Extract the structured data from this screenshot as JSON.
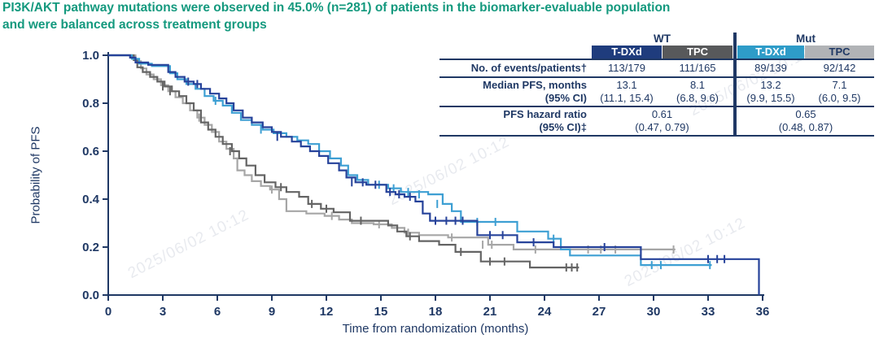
{
  "title": {
    "line1": "PI3K/AKT pathway mutations were observed in 45.0% (n=281) of patients in the biomarker-evaluable population",
    "line2": "and were balanced across treatment groups"
  },
  "watermark": {
    "text": "2025/06/02 10:12"
  },
  "colors": {
    "title_text": "#14997E",
    "axis_text": "#1F3864",
    "divider": "#1F3864",
    "wt_tdxd_curve": "#26429A",
    "wt_tpc_curve": "#646464",
    "mut_tdxd_curve": "#3D9FD3",
    "mut_tpc_curve": "#A6A6A6",
    "header_wt_tdxd_bg": "#1F3C7D",
    "header_wt_tpc_bg": "#58595B",
    "header_mut_tdxd_bg": "#2E9CC8",
    "header_mut_tpc_bg": "#B1B3B6"
  },
  "table": {
    "group_headers": [
      "WT",
      "Mut"
    ],
    "col_headers": [
      "T-DXd",
      "TPC",
      "T-DXd",
      "TPC"
    ],
    "rows": {
      "events": {
        "label": "No. of events/patients†",
        "wt_tdxd": "113/179",
        "wt_tpc": "111/165",
        "mut_tdxd": "89/139",
        "mut_tpc": "92/142"
      },
      "median": {
        "label_line1": "Median PFS, months",
        "label_line2": "(95% CI)",
        "wt_tdxd": "13.1",
        "wt_tdxd_ci": "(11.1, 15.4)",
        "wt_tpc": "8.1",
        "wt_tpc_ci": "(6.8, 9.6)",
        "mut_tdxd": "13.2",
        "mut_tdxd_ci": "(9.9, 15.5)",
        "mut_tpc": "7.1",
        "mut_tpc_ci": "(6.0, 9.5)"
      },
      "hazard": {
        "label_line1": "PFS hazard ratio",
        "label_line2": "(95% CI)‡",
        "wt": "0.61",
        "wt_ci": "(0.47, 0.79)",
        "mut": "0.65",
        "mut_ci": "(0.48, 0.87)"
      }
    }
  },
  "chart_data": {
    "type": "line",
    "subtype": "kaplan-meier-step",
    "xlabel": "Time from randomization (months)",
    "ylabel": "Probability of PFS",
    "xlim": [
      0,
      36
    ],
    "ylim": [
      0,
      1.0
    ],
    "xticks": [
      0,
      3,
      6,
      9,
      12,
      15,
      18,
      21,
      24,
      27,
      30,
      33,
      36
    ],
    "yticks": [
      0.0,
      0.2,
      0.4,
      0.6,
      0.8,
      1.0
    ],
    "grid": false,
    "legend": "table at top-right acts as legend",
    "series": [
      {
        "key": "mut-tpc",
        "name": "TPC (Mut)",
        "color": "#A6A6A6",
        "median_months": 7.1,
        "points": [
          [
            0,
            1.0
          ],
          [
            1.5,
            0.975
          ],
          [
            1.8,
            0.945
          ],
          [
            2.1,
            0.92
          ],
          [
            2.5,
            0.9
          ],
          [
            2.9,
            0.875
          ],
          [
            3.3,
            0.85
          ],
          [
            3.7,
            0.825
          ],
          [
            4.1,
            0.8
          ],
          [
            4.5,
            0.77
          ],
          [
            4.9,
            0.74
          ],
          [
            5.3,
            0.71
          ],
          [
            5.7,
            0.68
          ],
          [
            6.1,
            0.64
          ],
          [
            6.5,
            0.61
          ],
          [
            6.9,
            0.57
          ],
          [
            7.1,
            0.52
          ],
          [
            7.5,
            0.5
          ],
          [
            7.9,
            0.475
          ],
          [
            8.4,
            0.455
          ],
          [
            8.9,
            0.44
          ],
          [
            9.4,
            0.4
          ],
          [
            9.8,
            0.35
          ],
          [
            10.9,
            0.34
          ],
          [
            11.9,
            0.33
          ],
          [
            12.7,
            0.315
          ],
          [
            13.4,
            0.3
          ],
          [
            14.6,
            0.295
          ],
          [
            15.6,
            0.28
          ],
          [
            16.3,
            0.26
          ],
          [
            17.1,
            0.25
          ],
          [
            18.7,
            0.24
          ],
          [
            20.9,
            0.21
          ],
          [
            22.3,
            0.19
          ],
          [
            31.2,
            0.19
          ]
        ],
        "censors": [
          [
            5.0,
            0.74
          ],
          [
            9.0,
            0.44
          ],
          [
            12.3,
            0.33
          ],
          [
            14.9,
            0.295
          ],
          [
            16.5,
            0.26
          ],
          [
            18.9,
            0.24
          ],
          [
            20.6,
            0.21
          ],
          [
            21.1,
            0.21
          ],
          [
            23.5,
            0.19
          ],
          [
            26.4,
            0.19
          ],
          [
            27.1,
            0.19
          ],
          [
            27.9,
            0.19
          ],
          [
            31.1,
            0.19
          ]
        ]
      },
      {
        "key": "wt-tpc",
        "name": "TPC (WT)",
        "color": "#646464",
        "median_months": 8.1,
        "points": [
          [
            0,
            1.0
          ],
          [
            1.4,
            0.98
          ],
          [
            1.6,
            0.95
          ],
          [
            1.9,
            0.93
          ],
          [
            2.3,
            0.91
          ],
          [
            2.7,
            0.89
          ],
          [
            3.1,
            0.87
          ],
          [
            3.5,
            0.85
          ],
          [
            3.9,
            0.83
          ],
          [
            4.3,
            0.8
          ],
          [
            4.7,
            0.77
          ],
          [
            5.1,
            0.72
          ],
          [
            5.5,
            0.69
          ],
          [
            5.9,
            0.66
          ],
          [
            6.3,
            0.63
          ],
          [
            6.8,
            0.6
          ],
          [
            7.2,
            0.57
          ],
          [
            7.6,
            0.54
          ],
          [
            8.1,
            0.5
          ],
          [
            8.6,
            0.47
          ],
          [
            9.2,
            0.45
          ],
          [
            9.8,
            0.43
          ],
          [
            10.5,
            0.41
          ],
          [
            11.0,
            0.38
          ],
          [
            11.7,
            0.36
          ],
          [
            12.4,
            0.345
          ],
          [
            13.3,
            0.31
          ],
          [
            15.4,
            0.29
          ],
          [
            15.9,
            0.265
          ],
          [
            16.4,
            0.245
          ],
          [
            17.1,
            0.225
          ],
          [
            18.2,
            0.21
          ],
          [
            19.1,
            0.18
          ],
          [
            20.5,
            0.14
          ],
          [
            23.2,
            0.115
          ],
          [
            25.9,
            0.115
          ]
        ],
        "censors": [
          [
            3.0,
            0.87
          ],
          [
            3.4,
            0.85
          ],
          [
            6.7,
            0.6
          ],
          [
            9.5,
            0.45
          ],
          [
            11.2,
            0.38
          ],
          [
            12.0,
            0.36
          ],
          [
            13.9,
            0.31
          ],
          [
            16.6,
            0.245
          ],
          [
            19.4,
            0.18
          ],
          [
            21.0,
            0.14
          ],
          [
            21.8,
            0.14
          ],
          [
            25.2,
            0.115
          ],
          [
            25.5,
            0.115
          ],
          [
            25.8,
            0.115
          ]
        ]
      },
      {
        "key": "mut-tdxd",
        "name": "T-DXd (Mut)",
        "color": "#3D9FD3",
        "median_months": 13.2,
        "points": [
          [
            0,
            1.0
          ],
          [
            1.3,
            0.985
          ],
          [
            1.7,
            0.965
          ],
          [
            2.4,
            0.955
          ],
          [
            3.4,
            0.925
          ],
          [
            3.8,
            0.9
          ],
          [
            4.3,
            0.88
          ],
          [
            4.8,
            0.86
          ],
          [
            5.3,
            0.83
          ],
          [
            5.8,
            0.81
          ],
          [
            6.3,
            0.79
          ],
          [
            6.8,
            0.76
          ],
          [
            7.3,
            0.73
          ],
          [
            7.9,
            0.71
          ],
          [
            8.5,
            0.69
          ],
          [
            9.1,
            0.675
          ],
          [
            9.8,
            0.66
          ],
          [
            10.4,
            0.645
          ],
          [
            11.0,
            0.63
          ],
          [
            11.6,
            0.6
          ],
          [
            12.2,
            0.57
          ],
          [
            12.8,
            0.54
          ],
          [
            13.2,
            0.5
          ],
          [
            13.7,
            0.48
          ],
          [
            14.3,
            0.46
          ],
          [
            15.4,
            0.445
          ],
          [
            16.1,
            0.43
          ],
          [
            17.6,
            0.42
          ],
          [
            18.4,
            0.38
          ],
          [
            18.9,
            0.35
          ],
          [
            19.4,
            0.305
          ],
          [
            22.5,
            0.265
          ],
          [
            24.2,
            0.235
          ],
          [
            24.9,
            0.19
          ],
          [
            25.4,
            0.165
          ],
          [
            29.3,
            0.125
          ],
          [
            33.2,
            0.125
          ]
        ],
        "censors": [
          [
            5.9,
            0.81
          ],
          [
            8.4,
            0.69
          ],
          [
            14.9,
            0.46
          ],
          [
            15.7,
            0.445
          ],
          [
            16.5,
            0.43
          ],
          [
            17.1,
            0.42
          ],
          [
            18.1,
            0.38
          ],
          [
            20.3,
            0.305
          ],
          [
            21.3,
            0.305
          ],
          [
            24.5,
            0.235
          ],
          [
            29.9,
            0.125
          ],
          [
            30.4,
            0.125
          ],
          [
            33.1,
            0.125
          ]
        ]
      },
      {
        "key": "wt-tdxd",
        "name": "T-DXd (WT)",
        "color": "#26429A",
        "median_months": 13.1,
        "points": [
          [
            0,
            1.0
          ],
          [
            1.2,
            0.99
          ],
          [
            1.5,
            0.97
          ],
          [
            2.2,
            0.96
          ],
          [
            3.3,
            0.93
          ],
          [
            3.7,
            0.91
          ],
          [
            4.2,
            0.89
          ],
          [
            4.7,
            0.88
          ],
          [
            5.1,
            0.86
          ],
          [
            5.6,
            0.84
          ],
          [
            6.1,
            0.82
          ],
          [
            6.5,
            0.8
          ],
          [
            6.9,
            0.77
          ],
          [
            7.4,
            0.74
          ],
          [
            7.9,
            0.72
          ],
          [
            8.5,
            0.7
          ],
          [
            9.0,
            0.68
          ],
          [
            9.5,
            0.66
          ],
          [
            10.1,
            0.64
          ],
          [
            10.6,
            0.62
          ],
          [
            11.1,
            0.6
          ],
          [
            11.6,
            0.58
          ],
          [
            12.1,
            0.55
          ],
          [
            12.7,
            0.52
          ],
          [
            13.1,
            0.49
          ],
          [
            13.6,
            0.47
          ],
          [
            14.2,
            0.46
          ],
          [
            15.3,
            0.43
          ],
          [
            15.8,
            0.42
          ],
          [
            16.3,
            0.41
          ],
          [
            16.9,
            0.39
          ],
          [
            17.3,
            0.34
          ],
          [
            17.7,
            0.31
          ],
          [
            20.3,
            0.25
          ],
          [
            22.5,
            0.22
          ],
          [
            24.5,
            0.2
          ],
          [
            29.3,
            0.15
          ],
          [
            35.8,
            0.0
          ]
        ],
        "censors": [
          [
            4.4,
            0.89
          ],
          [
            4.9,
            0.88
          ],
          [
            9.3,
            0.66
          ],
          [
            13.4,
            0.47
          ],
          [
            14.0,
            0.47
          ],
          [
            14.7,
            0.46
          ],
          [
            15.5,
            0.43
          ],
          [
            16.0,
            0.42
          ],
          [
            16.6,
            0.41
          ],
          [
            18.0,
            0.31
          ],
          [
            18.6,
            0.31
          ],
          [
            19.1,
            0.31
          ],
          [
            19.5,
            0.31
          ],
          [
            21.0,
            0.25
          ],
          [
            21.7,
            0.25
          ],
          [
            23.4,
            0.22
          ],
          [
            27.3,
            0.2
          ],
          [
            33.0,
            0.15
          ],
          [
            33.5,
            0.15
          ],
          [
            33.9,
            0.15
          ]
        ]
      }
    ]
  }
}
